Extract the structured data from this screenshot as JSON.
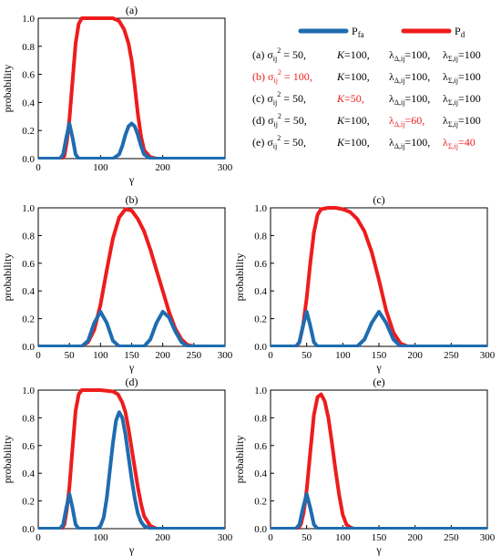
{
  "figure_legend": {
    "series": [
      {
        "label": "P",
        "sub": "fa",
        "color": "#1f6cb0"
      },
      {
        "label": "P",
        "sub": "d",
        "color": "#ee1c1c"
      }
    ],
    "cases": [
      {
        "id": "(a)",
        "sigma": "50",
        "K": "100",
        "ld": "100",
        "ls": "100",
        "red": []
      },
      {
        "id": "(b)",
        "sigma": "100",
        "K": "100",
        "ld": "100",
        "ls": "100",
        "red": [
          "id",
          "sigma"
        ]
      },
      {
        "id": "(c)",
        "sigma": "50",
        "K": "50",
        "ld": "100",
        "ls": "100",
        "red": [
          "K"
        ]
      },
      {
        "id": "(d)",
        "sigma": "50",
        "K": "100",
        "ld": "60",
        "ls": "100",
        "red": [
          "ld"
        ]
      },
      {
        "id": "(e)",
        "sigma": "50",
        "K": "100",
        "ld": "100",
        "ls": "40",
        "red": [
          "ls"
        ]
      }
    ],
    "red_color": "#ee1c1c"
  },
  "chart_data": [
    {
      "type": "line",
      "title": "(a)",
      "xlabel": "γ",
      "ylabel": "probability",
      "xlim": [
        0,
        300
      ],
      "ylim": [
        0,
        1.0
      ],
      "xticks": [
        "0",
        "100",
        "200",
        "300"
      ],
      "yticks": [
        "0.0",
        "0.2",
        "0.4",
        "0.6",
        "0.8",
        "1.0"
      ],
      "series": [
        {
          "name": "P_d",
          "color": "#ee1c1c",
          "x": [
            0,
            38,
            42,
            46,
            50,
            55,
            60,
            65,
            70,
            80,
            100,
            120,
            130,
            138,
            145,
            150,
            155,
            160,
            165,
            170,
            180,
            190,
            300
          ],
          "y": [
            0,
            0,
            0.02,
            0.12,
            0.28,
            0.55,
            0.82,
            0.96,
            1.0,
            1.0,
            1.0,
            1.0,
            0.98,
            0.92,
            0.82,
            0.7,
            0.52,
            0.32,
            0.16,
            0.06,
            0.01,
            0,
            0
          ]
        },
        {
          "name": "P_fa",
          "color": "#1f6cb0",
          "x": [
            0,
            35,
            40,
            45,
            50,
            55,
            60,
            65,
            120,
            130,
            135,
            140,
            145,
            150,
            155,
            160,
            165,
            170,
            180,
            300
          ],
          "y": [
            0,
            0,
            0.03,
            0.15,
            0.25,
            0.15,
            0.03,
            0,
            0,
            0.03,
            0.09,
            0.17,
            0.23,
            0.25,
            0.23,
            0.17,
            0.09,
            0.03,
            0,
            0
          ]
        }
      ]
    },
    {
      "type": "line",
      "title": "(b)",
      "xlabel": "γ",
      "ylabel": "probability",
      "xlim": [
        0,
        300
      ],
      "ylim": [
        0,
        1.0
      ],
      "xticks": [
        "0",
        "50",
        "100",
        "150",
        "200",
        "250",
        "300"
      ],
      "yticks": [
        "0.0",
        "0.2",
        "0.4",
        "0.6",
        "0.8",
        "1.0"
      ],
      "series": [
        {
          "name": "P_d",
          "color": "#ee1c1c",
          "x": [
            0,
            70,
            80,
            90,
            100,
            110,
            120,
            130,
            140,
            150,
            160,
            170,
            180,
            190,
            200,
            210,
            220,
            230,
            240,
            250,
            300
          ],
          "y": [
            0,
            0,
            0.03,
            0.12,
            0.3,
            0.55,
            0.78,
            0.93,
            0.99,
            0.98,
            0.92,
            0.83,
            0.7,
            0.55,
            0.4,
            0.25,
            0.13,
            0.05,
            0.01,
            0,
            0
          ]
        },
        {
          "name": "P_fa",
          "color": "#1f6cb0",
          "x": [
            0,
            70,
            80,
            90,
            100,
            110,
            120,
            130,
            170,
            180,
            190,
            200,
            210,
            220,
            230,
            240,
            300
          ],
          "y": [
            0,
            0,
            0.04,
            0.17,
            0.25,
            0.17,
            0.04,
            0,
            0,
            0.05,
            0.17,
            0.25,
            0.21,
            0.11,
            0.03,
            0,
            0
          ]
        }
      ]
    },
    {
      "type": "line",
      "title": "(c)",
      "xlabel": "γ",
      "ylabel": "probability",
      "xlim": [
        0,
        300
      ],
      "ylim": [
        0,
        1.0
      ],
      "xticks": [
        "0",
        "50",
        "100",
        "150",
        "200",
        "250",
        "300"
      ],
      "yticks": [
        "0.0",
        "0.2",
        "0.4",
        "0.6",
        "0.8",
        "1.0"
      ],
      "series": [
        {
          "name": "P_d",
          "color": "#ee1c1c",
          "x": [
            0,
            36,
            40,
            45,
            50,
            55,
            60,
            65,
            70,
            80,
            90,
            100,
            110,
            120,
            130,
            140,
            150,
            160,
            170,
            180,
            190,
            300
          ],
          "y": [
            0,
            0,
            0.03,
            0.15,
            0.35,
            0.6,
            0.82,
            0.95,
            0.99,
            1.0,
            1.0,
            0.99,
            0.97,
            0.92,
            0.83,
            0.68,
            0.48,
            0.26,
            0.1,
            0.02,
            0,
            0
          ]
        },
        {
          "name": "P_fa",
          "color": "#1f6cb0",
          "x": [
            0,
            35,
            40,
            45,
            50,
            55,
            60,
            65,
            120,
            130,
            140,
            150,
            160,
            170,
            180,
            300
          ],
          "y": [
            0,
            0,
            0.03,
            0.15,
            0.25,
            0.15,
            0.03,
            0,
            0,
            0.05,
            0.17,
            0.25,
            0.17,
            0.05,
            0,
            0
          ]
        }
      ]
    },
    {
      "type": "line",
      "title": "(d)",
      "xlabel": "γ",
      "ylabel": "probability",
      "xlim": [
        0,
        300
      ],
      "ylim": [
        0,
        1.0
      ],
      "xticks": [
        "0",
        "100",
        "200",
        "300"
      ],
      "yticks": [
        "0.0",
        "0.2",
        "0.4",
        "0.6",
        "0.8",
        "1.0"
      ],
      "series": [
        {
          "name": "P_d",
          "color": "#ee1c1c",
          "x": [
            0,
            38,
            42,
            46,
            50,
            55,
            60,
            65,
            70,
            100,
            120,
            128,
            135,
            140,
            145,
            150,
            155,
            160,
            165,
            170,
            180,
            190,
            300
          ],
          "y": [
            0,
            0,
            0.03,
            0.14,
            0.3,
            0.58,
            0.85,
            0.97,
            1.0,
            1.0,
            0.99,
            0.97,
            0.91,
            0.84,
            0.72,
            0.58,
            0.44,
            0.3,
            0.18,
            0.09,
            0.02,
            0,
            0
          ]
        },
        {
          "name": "P_fa",
          "color": "#1f6cb0",
          "x": [
            0,
            35,
            40,
            45,
            50,
            55,
            60,
            65,
            95,
            100,
            105,
            110,
            115,
            120,
            125,
            130,
            135,
            140,
            145,
            150,
            155,
            160,
            165,
            170,
            180,
            190,
            300
          ],
          "y": [
            0,
            0,
            0.03,
            0.15,
            0.25,
            0.15,
            0.03,
            0,
            0,
            0.02,
            0.08,
            0.22,
            0.42,
            0.62,
            0.78,
            0.84,
            0.8,
            0.68,
            0.52,
            0.36,
            0.22,
            0.11,
            0.05,
            0.02,
            0,
            0,
            0
          ]
        }
      ]
    },
    {
      "type": "line",
      "title": "(e)",
      "xlabel": "γ",
      "ylabel": "probability",
      "xlim": [
        0,
        300
      ],
      "ylim": [
        0,
        1.0
      ],
      "xticks": [
        "0",
        "50",
        "100",
        "150",
        "200",
        "250",
        "300"
      ],
      "yticks": [
        "0.0",
        "0.2",
        "0.4",
        "0.6",
        "0.8",
        "1.0"
      ],
      "series": [
        {
          "name": "P_d",
          "color": "#ee1c1c",
          "x": [
            0,
            38,
            42,
            46,
            50,
            55,
            60,
            65,
            70,
            75,
            80,
            85,
            90,
            95,
            100,
            105,
            110,
            115,
            300
          ],
          "y": [
            0,
            0,
            0.03,
            0.12,
            0.28,
            0.55,
            0.82,
            0.95,
            0.97,
            0.92,
            0.8,
            0.62,
            0.42,
            0.24,
            0.1,
            0.03,
            0.01,
            0,
            0
          ]
        },
        {
          "name": "P_fa",
          "color": "#1f6cb0",
          "x": [
            0,
            35,
            40,
            45,
            50,
            55,
            60,
            65,
            300
          ],
          "y": [
            0,
            0,
            0.03,
            0.15,
            0.25,
            0.15,
            0.03,
            0,
            0
          ]
        }
      ]
    }
  ]
}
